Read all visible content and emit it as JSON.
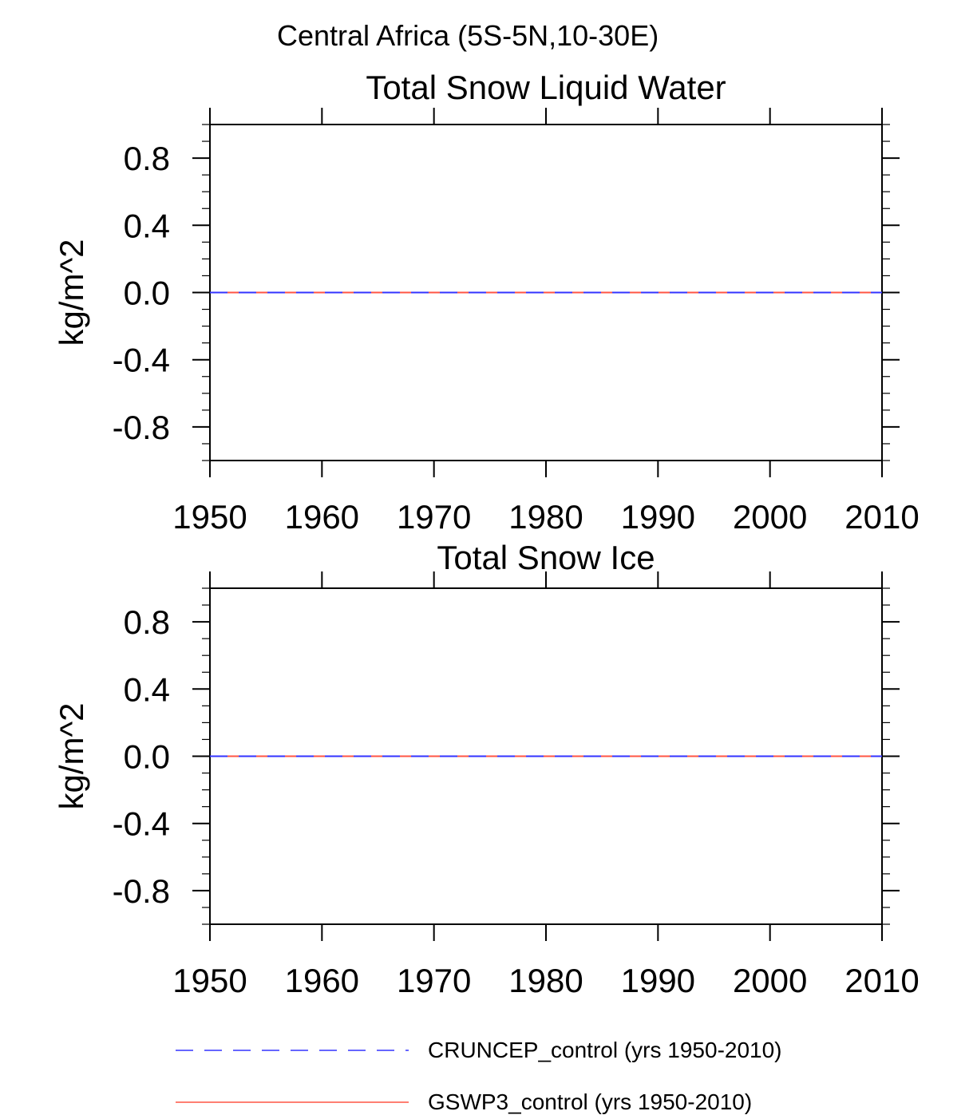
{
  "figure": {
    "title": "Central Africa (5S-5N,10-30E)"
  },
  "chart_data": [
    {
      "type": "line",
      "title": "Total Snow Liquid Water",
      "xlabel": "",
      "ylabel": "kg/m^2",
      "xlim": [
        1950,
        2010
      ],
      "ylim": [
        -1.0,
        1.0
      ],
      "x_ticks": [
        1950,
        1960,
        1970,
        1980,
        1990,
        2000,
        2010
      ],
      "x_tick_labels": [
        "1950",
        "1960",
        "1970",
        "1980",
        "1990",
        "2000",
        "2010"
      ],
      "y_ticks": [
        0.8,
        0.4,
        0.0,
        -0.4,
        -0.8
      ],
      "y_tick_labels": [
        "0.8",
        "0.4",
        "0.0",
        "-0.4",
        "-0.8"
      ],
      "grid": false,
      "series": [
        {
          "name": "CRUNCEP_control (yrs 1950-2010)",
          "color": "#3333ff",
          "dash": "dashed",
          "x": [
            1950,
            2010
          ],
          "y": [
            0.0,
            0.0
          ]
        },
        {
          "name": "GSWP3_control (yrs 1950-2010)",
          "color": "#ff5544",
          "dash": "solid",
          "x": [
            1950,
            2010
          ],
          "y": [
            0.0,
            0.0
          ]
        }
      ]
    },
    {
      "type": "line",
      "title": "Total Snow Ice",
      "xlabel": "",
      "ylabel": "kg/m^2",
      "xlim": [
        1950,
        2010
      ],
      "ylim": [
        -1.0,
        1.0
      ],
      "x_ticks": [
        1950,
        1960,
        1970,
        1980,
        1990,
        2000,
        2010
      ],
      "x_tick_labels": [
        "1950",
        "1960",
        "1970",
        "1980",
        "1990",
        "2000",
        "2010"
      ],
      "y_ticks": [
        0.8,
        0.4,
        0.0,
        -0.4,
        -0.8
      ],
      "y_tick_labels": [
        "0.8",
        "0.4",
        "0.0",
        "-0.4",
        "-0.8"
      ],
      "grid": false,
      "series": [
        {
          "name": "CRUNCEP_control (yrs 1950-2010)",
          "color": "#3333ff",
          "dash": "dashed",
          "x": [
            1950,
            2010
          ],
          "y": [
            0.0,
            0.0
          ]
        },
        {
          "name": "GSWP3_control (yrs 1950-2010)",
          "color": "#ff5544",
          "dash": "solid",
          "x": [
            1950,
            2010
          ],
          "y": [
            0.0,
            0.0
          ]
        }
      ]
    }
  ],
  "legend": {
    "placement": "bottom",
    "entries": [
      {
        "label": "CRUNCEP_control (yrs 1950-2010)",
        "color": "#3333ff",
        "dash": "dashed"
      },
      {
        "label": "GSWP3_control (yrs 1950-2010)",
        "color": "#ff5544",
        "dash": "solid"
      }
    ]
  }
}
